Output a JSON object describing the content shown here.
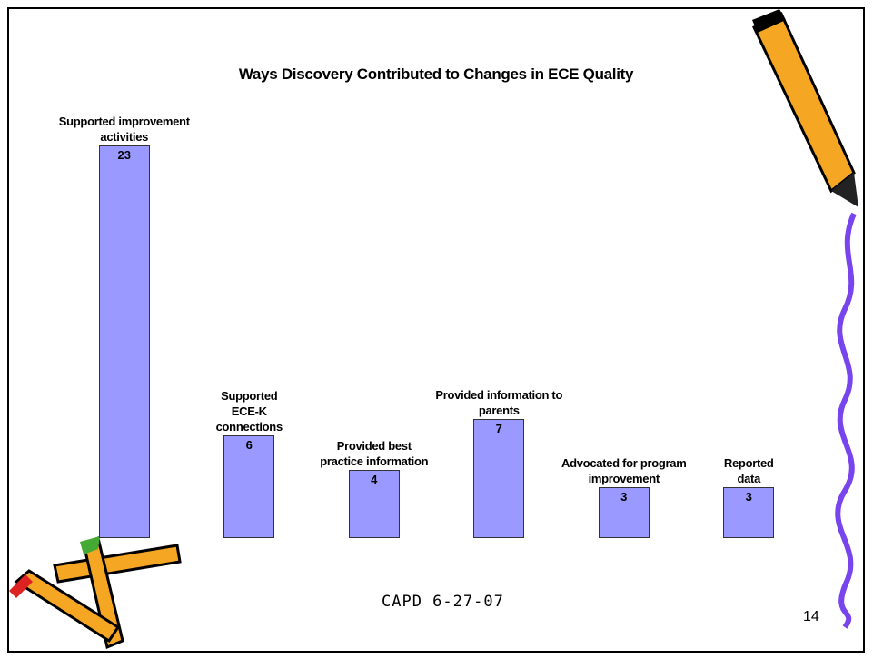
{
  "chart_data": {
    "type": "bar",
    "title": "Ways Discovery Contributed to Changes in ECE Quality",
    "categories": [
      "Supported improvement activities",
      "Supported ECE-K connections",
      "Provided best practice information",
      "Provided information to parents",
      "Advocated for program improvement",
      "Reported data"
    ],
    "values": [
      23,
      6,
      4,
      7,
      3,
      3
    ],
    "color": "#9999ff"
  },
  "footer": "CAPD 6-27-07",
  "page_number": "14"
}
